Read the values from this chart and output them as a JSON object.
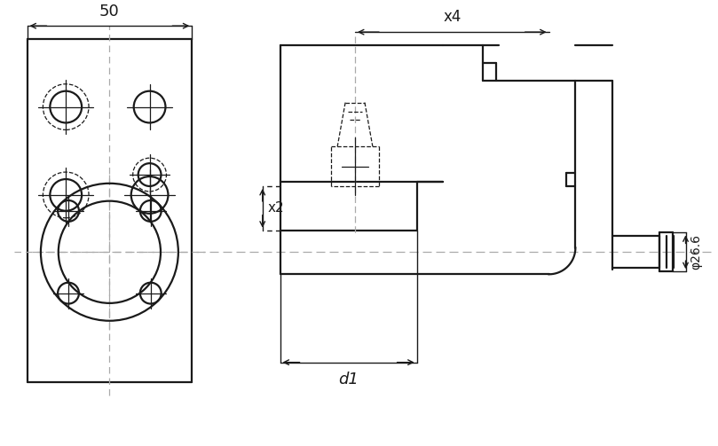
{
  "bg_color": "#ffffff",
  "line_color": "#1a1a1a",
  "dim_color": "#333333",
  "dash_color": "#555555",
  "fig_width": 8.09,
  "fig_height": 5.03,
  "dpi": 100,
  "title": "",
  "annotations": {
    "dim_50": "50",
    "dim_x4": "x4",
    "dim_x2": "x2",
    "dim_d1": "d1",
    "dim_phi": "φ26.6"
  }
}
